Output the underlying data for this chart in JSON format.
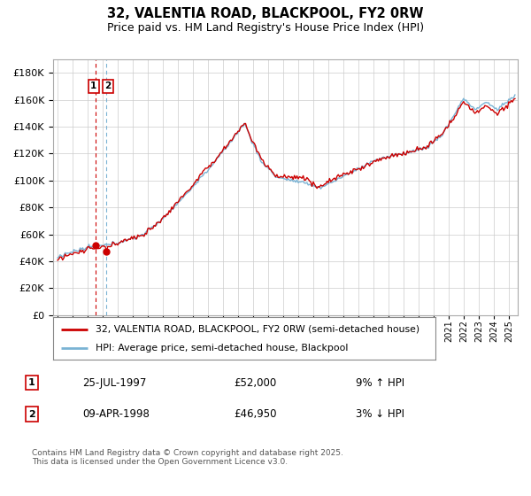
{
  "title_line1": "32, VALENTIA ROAD, BLACKPOOL, FY2 0RW",
  "title_line2": "Price paid vs. HM Land Registry's House Price Index (HPI)",
  "legend_line1": "32, VALENTIA ROAD, BLACKPOOL, FY2 0RW (semi-detached house)",
  "legend_line2": "HPI: Average price, semi-detached house, Blackpool",
  "transaction1_date": "25-JUL-1997",
  "transaction1_price": "£52,000",
  "transaction1_hpi": "9% ↑ HPI",
  "transaction2_date": "09-APR-1998",
  "transaction2_price": "£46,950",
  "transaction2_hpi": "3% ↓ HPI",
  "hpi_color": "#7ab3d4",
  "price_color": "#cc0000",
  "vline1_color": "#cc0000",
  "vline2_color": "#7ab3d4",
  "background_color": "#ffffff",
  "grid_color": "#cccccc",
  "footer_text": "Contains HM Land Registry data © Crown copyright and database right 2025.\nThis data is licensed under the Open Government Licence v3.0.",
  "ylim": [
    0,
    190000
  ],
  "ytick_step": 20000,
  "transaction1_date_num": 1997.542,
  "transaction1_price_val": 52000,
  "transaction2_date_num": 1998.25,
  "transaction2_price_val": 46950,
  "xlim_left": 1994.7,
  "xlim_right": 2025.6
}
